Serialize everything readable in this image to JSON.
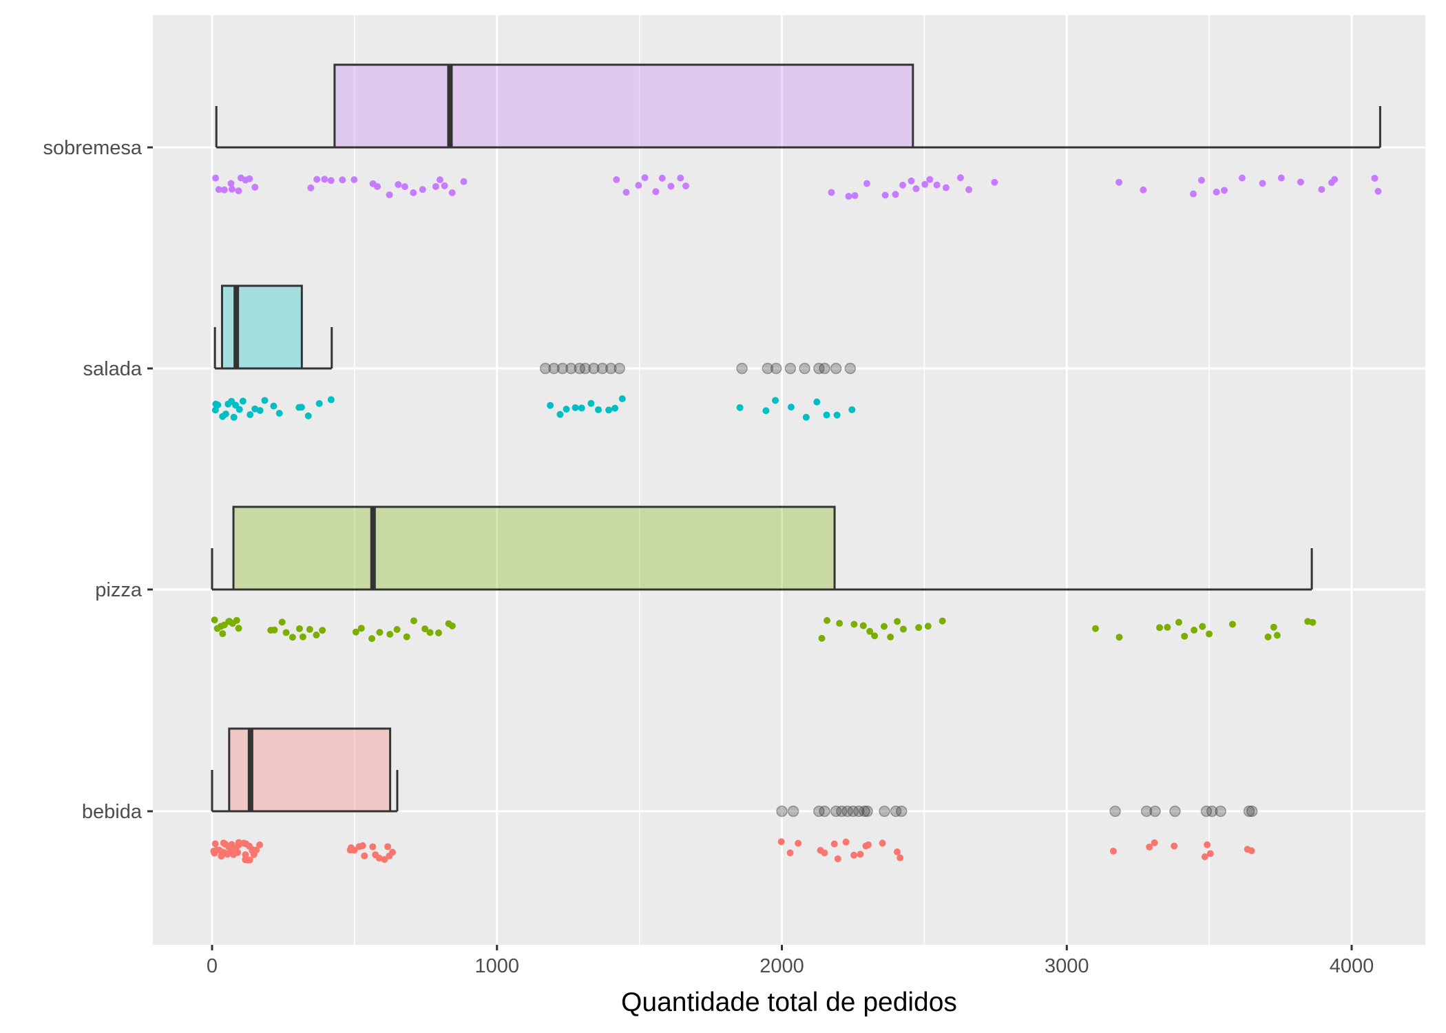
{
  "chart_data": {
    "type": "boxplot",
    "orientation": "horizontal",
    "title": "",
    "xlabel": "Quantidade total de pedidos",
    "ylabel": "",
    "xlim": [
      -200,
      4250
    ],
    "x_ticks": [
      0,
      1000,
      2000,
      3000,
      4000
    ],
    "x_tick_labels": [
      "0",
      "1000",
      "2000",
      "3000",
      "4000"
    ],
    "categories": [
      "bebida",
      "pizza",
      "salada",
      "sobremesa"
    ],
    "grid": true,
    "legend": "none",
    "colors": {
      "bebida": "#F8766D",
      "pizza": "#7CAE00",
      "salada": "#00BFC4",
      "sobremesa": "#C77CFF",
      "outlier": "#333333",
      "panel": "#EBEBEB",
      "grid": "#FFFFFF",
      "box_line": "#333333"
    },
    "boxes": [
      {
        "category": "bebida",
        "whisker_low": 0,
        "q1": 60,
        "median": 135,
        "q3": 625,
        "whisker_high": 650,
        "outliers": [
          2000,
          2040,
          2130,
          2150,
          2190,
          2210,
          2230,
          2250,
          2270,
          2290,
          2300,
          2360,
          2400,
          2420,
          3170,
          3280,
          3310,
          3380,
          3490,
          3510,
          3540,
          3640,
          3650
        ]
      },
      {
        "category": "pizza",
        "whisker_low": 0,
        "q1": 75,
        "median": 565,
        "q3": 2185,
        "whisker_high": 3860,
        "outliers": []
      },
      {
        "category": "salada",
        "whisker_low": 10,
        "q1": 35,
        "median": 85,
        "q3": 315,
        "whisker_high": 420,
        "outliers": [
          1170,
          1200,
          1230,
          1260,
          1290,
          1310,
          1340,
          1370,
          1400,
          1430,
          1860,
          1950,
          1980,
          2030,
          2080,
          2130,
          2150,
          2190,
          2240
        ]
      },
      {
        "category": "sobremesa",
        "whisker_low": 15,
        "q1": 430,
        "median": 835,
        "q3": 2460,
        "whisker_high": 4100,
        "outliers": []
      }
    ],
    "jitter_points": [
      {
        "category": "bebida",
        "x": [
          5,
          15,
          25,
          35,
          45,
          55,
          60,
          70,
          80,
          90,
          100,
          110,
          120,
          130,
          140,
          150,
          160,
          20,
          40,
          65,
          85,
          105,
          125,
          145,
          10,
          30,
          50,
          75,
          95,
          115,
          135,
          155,
          480,
          500,
          520,
          540,
          560,
          580,
          600,
          620,
          640,
          490,
          530,
          570,
          610,
          2000,
          2030,
          2050,
          2130,
          2150,
          2180,
          2200,
          2230,
          2250,
          2270,
          2290,
          2310,
          2360,
          2400,
          2420,
          3170,
          3290,
          3310,
          3380,
          3490,
          3500,
          3510,
          3640,
          3650
        ]
      },
      {
        "category": "pizza",
        "x": [
          5,
          15,
          25,
          35,
          45,
          55,
          65,
          75,
          85,
          95,
          200,
          220,
          240,
          260,
          280,
          300,
          320,
          340,
          360,
          380,
          500,
          530,
          560,
          590,
          620,
          650,
          680,
          710,
          740,
          770,
          800,
          830,
          850,
          2140,
          2160,
          2200,
          2250,
          2280,
          2310,
          2330,
          2360,
          2380,
          2410,
          2430,
          2480,
          2520,
          2560,
          3100,
          3190,
          3330,
          3360,
          3390,
          3420,
          3450,
          3480,
          3500,
          3580,
          3700,
          3720,
          3740,
          3850,
          3860
        ]
      },
      {
        "category": "salada",
        "x": [
          5,
          15,
          25,
          35,
          45,
          55,
          65,
          75,
          85,
          95,
          110,
          130,
          150,
          170,
          190,
          210,
          230,
          300,
          320,
          340,
          380,
          420,
          1180,
          1220,
          1250,
          1280,
          1300,
          1330,
          1360,
          1390,
          1420,
          1440,
          1860,
          1950,
          1980,
          2030,
          2080,
          2130,
          2150,
          2190,
          2240
        ]
      },
      {
        "category": "sobremesa",
        "x": [
          15,
          30,
          45,
          60,
          75,
          90,
          105,
          120,
          135,
          150,
          340,
          370,
          400,
          420,
          460,
          500,
          560,
          580,
          620,
          650,
          680,
          710,
          740,
          780,
          800,
          820,
          840,
          880,
          1420,
          1460,
          1500,
          1520,
          1560,
          1580,
          1610,
          1640,
          1660,
          2180,
          2230,
          2260,
          2300,
          2360,
          2400,
          2420,
          2450,
          2470,
          2500,
          2520,
          2550,
          2580,
          2620,
          2660,
          2740,
          3180,
          3270,
          3450,
          3480,
          3520,
          3560,
          3620,
          3680,
          3760,
          3820,
          3900,
          3930,
          3940,
          4080,
          4090
        ]
      }
    ]
  }
}
